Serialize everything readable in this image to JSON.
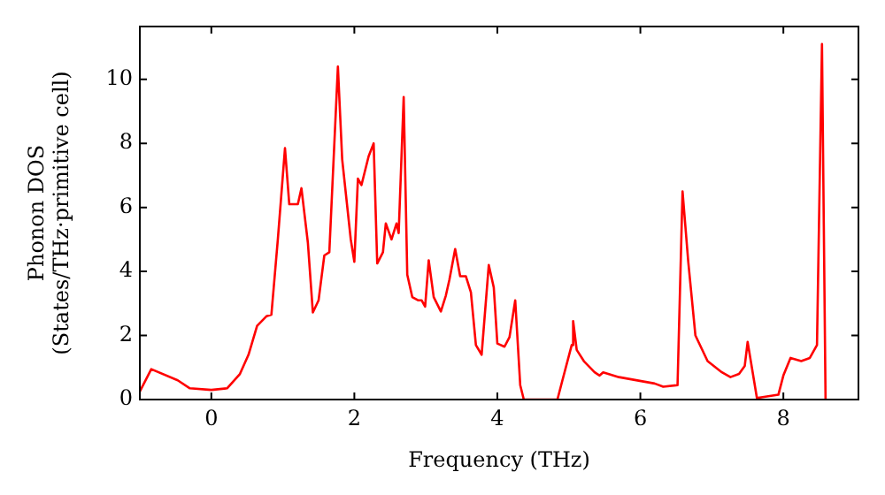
{
  "chart_data": {
    "type": "line",
    "xlabel": "Frequency (THz)",
    "ylabel": "Phonon DOS\n(States/THz·primitive cell)",
    "xlim": [
      -1,
      9.05
    ],
    "ylim": [
      0,
      11.65
    ],
    "xticks": [
      0,
      2,
      4,
      6,
      8
    ],
    "yticks": [
      0,
      2,
      4,
      6,
      8,
      10
    ],
    "grid": false,
    "legend": false,
    "marker": "none",
    "line_style": "solid",
    "series": [
      {
        "color": "#ff0000",
        "x": [
          -1,
          -0.84,
          -0.47,
          -0.3,
          0,
          0.22,
          0.4,
          0.52,
          0.64,
          0.77,
          0.84,
          0.93,
          1.03,
          1.09,
          1.21,
          1.26,
          1.35,
          1.42,
          1.5,
          1.58,
          1.65,
          1.77,
          1.83,
          1.95,
          2.0,
          2.05,
          2.1,
          2.2,
          2.27,
          2.32,
          2.4,
          2.44,
          2.52,
          2.59,
          2.62,
          2.69,
          2.74,
          2.81,
          2.89,
          2.94,
          2.99,
          3.04,
          3.11,
          3.21,
          3.28,
          3.33,
          3.41,
          3.48,
          3.56,
          3.63,
          3.7,
          3.78,
          3.88,
          3.95,
          4.0,
          4.1,
          4.17,
          4.25,
          4.32,
          4.37,
          4.84,
          4.91,
          5.04,
          5.06,
          5.11,
          5.21,
          5.36,
          5.43,
          5.48,
          5.7,
          6.2,
          6.32,
          6.52,
          6.59,
          6.67,
          6.77,
          6.94,
          7.14,
          7.26,
          7.38,
          7.46,
          7.5,
          7.63,
          7.93,
          8.0,
          8.1,
          8.25,
          8.37,
          8.47,
          8.54,
          8.59
        ],
        "values": [
          0.25,
          0.95,
          0.6,
          0.35,
          0.3,
          0.35,
          0.8,
          1.4,
          2.3,
          2.6,
          2.65,
          5.0,
          7.85,
          6.1,
          6.1,
          6.6,
          4.9,
          2.72,
          3.1,
          4.5,
          4.6,
          10.4,
          7.5,
          5.0,
          4.3,
          6.9,
          6.7,
          7.6,
          8.0,
          4.25,
          4.6,
          5.5,
          5.0,
          5.5,
          5.2,
          9.45,
          3.9,
          3.2,
          3.1,
          3.1,
          2.9,
          4.35,
          3.2,
          2.75,
          3.25,
          3.75,
          4.7,
          3.85,
          3.85,
          3.35,
          1.7,
          1.4,
          4.2,
          3.5,
          1.75,
          1.65,
          1.95,
          3.1,
          0.45,
          0,
          0,
          0.6,
          1.7,
          2.45,
          1.55,
          1.2,
          0.85,
          0.75,
          0.85,
          0.7,
          0.5,
          0.4,
          0.45,
          6.5,
          4.3,
          2.0,
          1.2,
          0.85,
          0.7,
          0.8,
          1.05,
          1.8,
          0.05,
          0.15,
          0.75,
          1.3,
          1.2,
          1.3,
          1.7,
          11.1,
          0
        ]
      }
    ]
  }
}
